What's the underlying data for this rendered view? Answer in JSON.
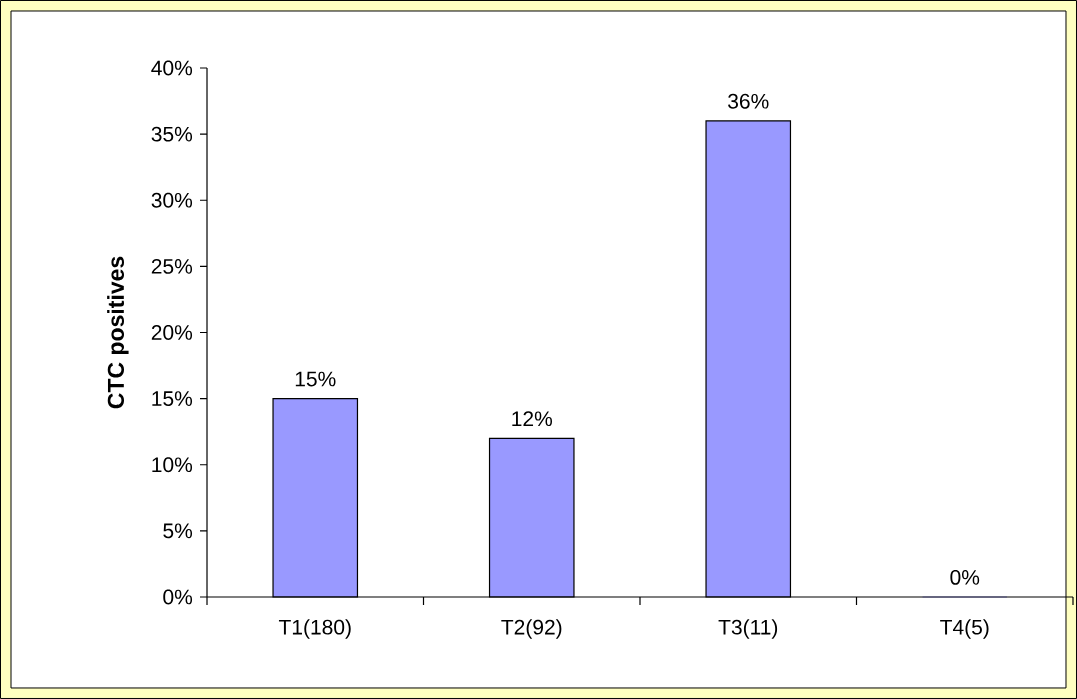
{
  "chart_data": {
    "type": "bar",
    "ylabel": "CTC positives",
    "categories": [
      "T1(180)",
      "T2(92)",
      "T3(11)",
      "T4(5)"
    ],
    "values": [
      15,
      12,
      36,
      0
    ],
    "value_labels": [
      "15%",
      "12%",
      "36%",
      "0%"
    ],
    "color": "#9999ff",
    "ylim": [
      0,
      40
    ],
    "yticks": [
      {
        "value": 0,
        "label": "0%"
      },
      {
        "value": 5,
        "label": "5%"
      },
      {
        "value": 10,
        "label": "10%"
      },
      {
        "value": 15,
        "label": "15%"
      },
      {
        "value": 20,
        "label": "20%"
      },
      {
        "value": 25,
        "label": "25%"
      },
      {
        "value": 30,
        "label": "30%"
      },
      {
        "value": 35,
        "label": "35%"
      },
      {
        "value": 40,
        "label": "40%"
      }
    ]
  }
}
